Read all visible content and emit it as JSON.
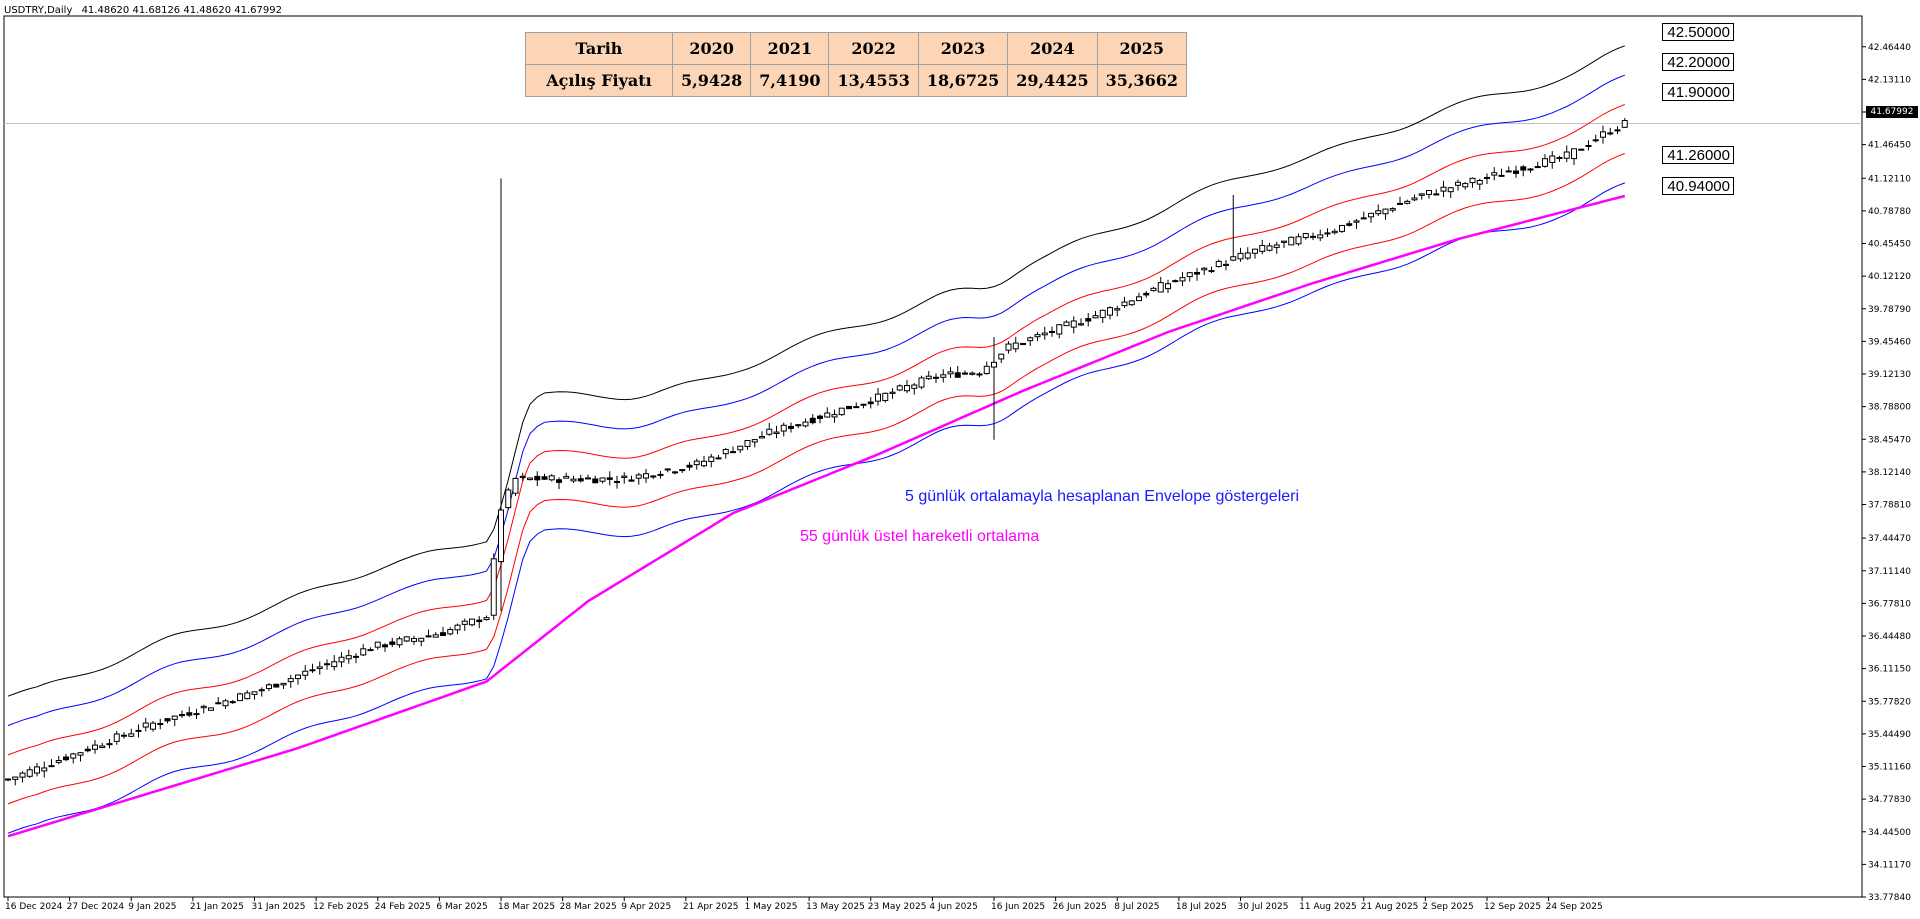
{
  "symbol_header": {
    "symbol": "USDTRY,Daily",
    "ohlc": "41.48620 41.68126 41.48620 41.67992"
  },
  "current_price": "41.67992",
  "open_price_table": {
    "header_label": "Tarih",
    "row_label": "Açılış Fiyatı",
    "years": [
      "2020",
      "2021",
      "2022",
      "2023",
      "2024",
      "2025"
    ],
    "values": [
      "5,9428",
      "7,4190",
      "13,4553",
      "18,6725",
      "29,4425",
      "35,3662"
    ]
  },
  "level_labels": [
    "42.50000",
    "42.20000",
    "41.90000",
    "41.26000",
    "40.94000"
  ],
  "annotations": {
    "envelope": "5 günlük ortalamayla hesaplanan Envelope göstergeleri",
    "ema": "55 günlük üstel hareketli ortalama"
  },
  "colors": {
    "envelope_outer": "#000000",
    "envelope_mid": "#0000ff",
    "envelope_inner": "#ff0000",
    "ema": "#ff00ff",
    "envelope_text": "#1a1aff",
    "ema_text": "#ff00ff",
    "candle": "#000000"
  },
  "chart_data": {
    "type": "line",
    "title": "",
    "xlabel": "",
    "ylabel": "",
    "ylim": [
      33.7786,
      42.7786
    ],
    "grid": false,
    "y_ticks": [
      "42.46440",
      "42.13110",
      "41.79780",
      "41.46450",
      "41.12110",
      "40.78780",
      "40.45450",
      "40.12120",
      "39.78790",
      "39.45460",
      "39.12130",
      "38.78800",
      "38.45470",
      "38.12140",
      "37.78810",
      "37.44470",
      "37.11140",
      "36.77810",
      "36.44480",
      "36.11150",
      "35.77820",
      "35.44490",
      "35.11160",
      "34.77830",
      "34.44500",
      "34.11170",
      "33.77840"
    ],
    "x_ticks": [
      "16 Dec 2024",
      "27 Dec 2024",
      "9 Jan 2025",
      "21 Jan 2025",
      "31 Jan 2025",
      "12 Feb 2025",
      "24 Feb 2025",
      "6 Mar 2025",
      "18 Mar 2025",
      "28 Mar 2025",
      "9 Apr 2025",
      "21 Apr 2025",
      "1 May 2025",
      "13 May 2025",
      "23 May 2025",
      "4 Jun 2025",
      "16 Jun 2025",
      "26 Jun 2025",
      "8 Jul 2025",
      "18 Jul 2025",
      "30 Jul 2025",
      "11 Aug 2025",
      "21 Aug 2025",
      "2 Sep 2025",
      "12 Sep 2025",
      "24 Sep 2025"
    ],
    "price_anchors": [
      {
        "i": 0,
        "v": 34.98
      },
      {
        "i": 20,
        "v": 35.55
      },
      {
        "i": 35,
        "v": 35.9
      },
      {
        "i": 50,
        "v": 36.33
      },
      {
        "i": 60,
        "v": 36.48
      },
      {
        "i": 66,
        "v": 36.65
      },
      {
        "i": 68,
        "v": 37.75
      },
      {
        "i": 70,
        "v": 38.05
      },
      {
        "i": 85,
        "v": 38.05
      },
      {
        "i": 95,
        "v": 38.2
      },
      {
        "i": 105,
        "v": 38.52
      },
      {
        "i": 120,
        "v": 38.88
      },
      {
        "i": 128,
        "v": 39.1
      },
      {
        "i": 134,
        "v": 39.15
      },
      {
        "i": 138,
        "v": 39.4
      },
      {
        "i": 150,
        "v": 39.72
      },
      {
        "i": 160,
        "v": 40.05
      },
      {
        "i": 172,
        "v": 40.38
      },
      {
        "i": 183,
        "v": 40.6
      },
      {
        "i": 195,
        "v": 40.95
      },
      {
        "i": 205,
        "v": 41.15
      },
      {
        "i": 215,
        "v": 41.35
      },
      {
        "i": 220,
        "v": 41.57
      },
      {
        "i": 223,
        "v": 41.68
      }
    ],
    "ema_anchors": [
      {
        "i": 0,
        "v": 34.4
      },
      {
        "i": 20,
        "v": 34.85
      },
      {
        "i": 40,
        "v": 35.3
      },
      {
        "i": 66,
        "v": 35.98
      },
      {
        "i": 80,
        "v": 36.8
      },
      {
        "i": 100,
        "v": 37.7
      },
      {
        "i": 120,
        "v": 38.3
      },
      {
        "i": 140,
        "v": 38.95
      },
      {
        "i": 160,
        "v": 39.55
      },
      {
        "i": 180,
        "v": 40.05
      },
      {
        "i": 200,
        "v": 40.5
      },
      {
        "i": 223,
        "v": 40.94
      }
    ],
    "envelope_offsets": {
      "outer": 0.85,
      "mid": 0.55,
      "inner": 0.25
    },
    "spike": {
      "i": 68,
      "high": 41.12,
      "low": 36.7
    },
    "series": [
      {
        "name": "5 günlük ortalamayla hesaplanan Envelope göstergeleri",
        "type": "envelope"
      },
      {
        "name": "55 günlük üstel hareketli ortalama",
        "type": "ema"
      }
    ]
  }
}
